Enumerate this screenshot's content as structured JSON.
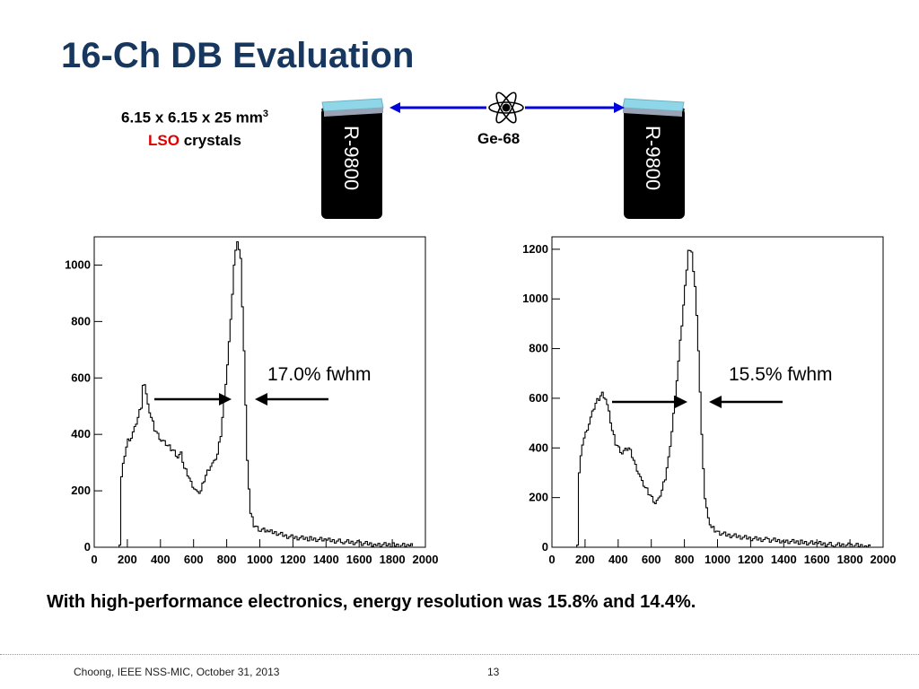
{
  "slide": {
    "title": "16-Ch DB Evaluation",
    "crystal_line1": "6.15 x 6.15 x 25 mm",
    "crystal_sup": "3",
    "crystal_material": "LSO",
    "crystal_word": " crystals",
    "pmt_left": "R-9800",
    "pmt_right": "R-9800",
    "source": "Ge-68",
    "fwhm_left": "17.0% fwhm",
    "fwhm_right": "15.5% fwhm",
    "conclusion": "With high-performance electronics, energy resolution was 15.8% and 14.4%.",
    "footer_credit": "Choong, IEEE NSS-MIC, October 31, 2013",
    "page_number": "13"
  },
  "colors": {
    "title": "#17375e",
    "lso": "#e00000",
    "arrow": "#0000dd",
    "crystal": "#8fd7e8"
  },
  "icons": [
    "atom-icon"
  ],
  "chart_data": [
    {
      "type": "line",
      "xlim": [
        0,
        2000
      ],
      "ylim": [
        0,
        1100
      ],
      "xticks": [
        0,
        200,
        400,
        600,
        800,
        1000,
        1200,
        1400,
        1600,
        1800,
        2000
      ],
      "yticks": [
        0,
        200,
        400,
        600,
        800,
        1000
      ],
      "x": [
        150,
        160,
        180,
        200,
        220,
        240,
        260,
        280,
        290,
        300,
        320,
        340,
        360,
        380,
        400,
        420,
        440,
        460,
        480,
        500,
        520,
        540,
        560,
        580,
        600,
        620,
        640,
        660,
        680,
        700,
        720,
        740,
        760,
        780,
        800,
        820,
        840,
        860,
        880,
        900,
        920,
        940,
        960,
        980,
        1000,
        1020,
        1050,
        1100,
        1150,
        1200,
        1300,
        1400,
        1500,
        1600,
        1700,
        1800,
        1900
      ],
      "y": [
        0,
        250,
        330,
        380,
        390,
        420,
        460,
        500,
        570,
        580,
        500,
        460,
        420,
        400,
        380,
        370,
        360,
        350,
        340,
        320,
        330,
        280,
        260,
        230,
        210,
        190,
        200,
        240,
        270,
        290,
        300,
        330,
        400,
        520,
        650,
        800,
        1000,
        1090,
        1020,
        700,
        300,
        120,
        80,
        70,
        60,
        60,
        55,
        50,
        40,
        35,
        30,
        25,
        20,
        15,
        10,
        8,
        5
      ]
    },
    {
      "type": "line",
      "xlim": [
        0,
        2000
      ],
      "ylim": [
        0,
        1250
      ],
      "xticks": [
        0,
        200,
        400,
        600,
        800,
        1000,
        1200,
        1400,
        1600,
        1800,
        2000
      ],
      "yticks": [
        0,
        200,
        400,
        600,
        800,
        1000,
        1200
      ],
      "x": [
        150,
        160,
        180,
        200,
        220,
        240,
        260,
        280,
        300,
        320,
        340,
        360,
        380,
        400,
        420,
        440,
        460,
        480,
        500,
        520,
        540,
        560,
        580,
        600,
        620,
        640,
        660,
        680,
        700,
        720,
        740,
        760,
        780,
        800,
        820,
        840,
        860,
        880,
        900,
        920,
        940,
        960,
        980,
        1000,
        1050,
        1100,
        1150,
        1200,
        1300,
        1400,
        1500,
        1600,
        1700,
        1800,
        1900
      ],
      "y": [
        0,
        300,
        420,
        460,
        500,
        540,
        580,
        600,
        620,
        600,
        540,
        470,
        420,
        400,
        380,
        390,
        400,
        370,
        330,
        300,
        260,
        240,
        220,
        200,
        180,
        190,
        230,
        280,
        360,
        470,
        600,
        750,
        900,
        1050,
        1200,
        1180,
        1050,
        800,
        450,
        200,
        110,
        80,
        70,
        60,
        50,
        45,
        40,
        35,
        30,
        25,
        20,
        15,
        10,
        8,
        5
      ]
    }
  ]
}
